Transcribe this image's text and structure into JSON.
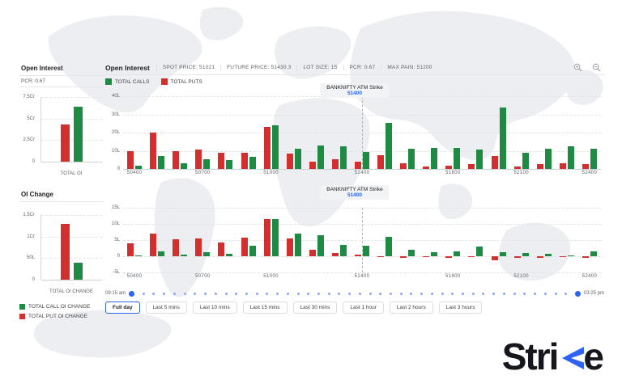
{
  "colors": {
    "call_green": "#1e8a44",
    "put_red": "#d22f2f",
    "accent_blue": "#2e62f1",
    "dot_blue": "#8aa4f8",
    "atm_box_bg": "#f1f3f4"
  },
  "sidebar": {
    "oi_panel": {
      "title": "Open Interest",
      "pcr_label": "PCR: 0.67",
      "xlabel": "TOTAL OI"
    },
    "oi_change_panel": {
      "title": "OI Change",
      "xlabel": "TOTAL OI CHANGE"
    },
    "legend": [
      {
        "label": "TOTAL CALL OI CHANGE",
        "color": "#1e8a44"
      },
      {
        "label": "TOTAL PUT OI CHANGE",
        "color": "#d22f2f"
      }
    ]
  },
  "main": {
    "title": "Open Interest",
    "stats": [
      {
        "label": "SPOT PRICE",
        "value": "51021"
      },
      {
        "label": "FUTURE PRICE",
        "value": "51430.3"
      },
      {
        "label": "LOT SIZE",
        "value": "15"
      },
      {
        "label": "PCR",
        "value": "0.67"
      },
      {
        "label": "MAX PAIN",
        "value": "51200"
      }
    ],
    "legend": [
      {
        "label": "TOTAL CALLS",
        "color": "#1e8a44"
      },
      {
        "label": "TOTAL PUTS",
        "color": "#d22f2f"
      }
    ],
    "atm": {
      "label": "BANKNIFTY ATM Strike",
      "value": "51400"
    },
    "slider": {
      "start_label": "09:15 am",
      "end_label": "03:25 pm",
      "dot_count": 42
    },
    "range_buttons": [
      {
        "label": "Full day",
        "active": true
      },
      {
        "label": "Last 5 mins",
        "active": false
      },
      {
        "label": "Last 10 mins",
        "active": false
      },
      {
        "label": "Last 15 mins",
        "active": false
      },
      {
        "label": "Last 30 mins",
        "active": false
      },
      {
        "label": "Last 1 hour",
        "active": false
      },
      {
        "label": "Last 2 hours",
        "active": false
      },
      {
        "label": "Last 3 hours",
        "active": false
      }
    ]
  },
  "logo": {
    "name": "Strike",
    "prefix": "Stri",
    "suffix": "e"
  },
  "chart_data": [
    {
      "id": "main_total_oi",
      "type": "bar",
      "title": "Open Interest by strike",
      "unit": "lakh",
      "categories": [
        "50400",
        "50500",
        "50600",
        "50700",
        "50800",
        "50900",
        "51000",
        "51100",
        "51200",
        "51300",
        "51400",
        "51500",
        "51600",
        "51700",
        "51800",
        "51900",
        "52000",
        "52100",
        "52200",
        "52300",
        "52400"
      ],
      "series": [
        {
          "name": "TOTAL PUTS",
          "color": "#d22f2f",
          "values": [
            10,
            20,
            10,
            10.5,
            9,
            9,
            23,
            8.5,
            4,
            5.5,
            4,
            7.5,
            3,
            1.5,
            2,
            2.5,
            7,
            1.5,
            2.5,
            3,
            2.5
          ]
        },
        {
          "name": "TOTAL CALLS",
          "color": "#1e8a44",
          "values": [
            2,
            7,
            3,
            5.5,
            5,
            6.5,
            24,
            11,
            13,
            12.5,
            9.5,
            25.5,
            11,
            11.5,
            11.5,
            10.5,
            34,
            9,
            11,
            12.5,
            11
          ]
        }
      ],
      "ylim": [
        0,
        40
      ],
      "yticks": [
        "40L",
        "30L",
        "20L",
        "10L",
        "0"
      ],
      "xtick_indices": [
        0,
        3,
        6,
        10,
        14,
        17,
        20
      ],
      "atm_index": 10,
      "atm_strike": "51400",
      "grid": "dashed-horizontal",
      "legend_position": "top-left"
    },
    {
      "id": "main_oi_change",
      "type": "bar",
      "title": "OI Change by strike",
      "unit": "lakh",
      "categories": [
        "50400",
        "50500",
        "50600",
        "50700",
        "50800",
        "50900",
        "51000",
        "51100",
        "51200",
        "51300",
        "51400",
        "51500",
        "51600",
        "51700",
        "51800",
        "51900",
        "52000",
        "52100",
        "52200",
        "52300",
        "52400"
      ],
      "series": [
        {
          "name": "TOTAL PUT OI CHANGE",
          "color": "#d22f2f",
          "values": [
            4,
            7,
            5.2,
            5.5,
            4.2,
            5.7,
            11.5,
            5.5,
            2,
            1,
            0.4,
            -0.2,
            -0.4,
            -0.3,
            -0.4,
            -0.3,
            -1.2,
            -0.4,
            -0.4,
            -0.3,
            -0.6
          ]
        },
        {
          "name": "TOTAL CALL OI CHANGE",
          "color": "#1e8a44",
          "values": [
            0.3,
            1.5,
            0.4,
            1.2,
            0.8,
            3.2,
            11.6,
            7,
            6.5,
            3.5,
            3.3,
            6,
            2,
            1.2,
            1.5,
            3,
            1.3,
            0.9,
            0.8,
            0.3,
            1.6
          ]
        }
      ],
      "ylim": [
        -5,
        15
      ],
      "yticks": [
        "15L",
        "10L",
        "5L",
        "0",
        "-5L"
      ],
      "xtick_indices": [
        0,
        3,
        6,
        10,
        14,
        17,
        20
      ],
      "atm_index": 10,
      "atm_strike": "51400",
      "grid": "dashed-horizontal",
      "legend_position": "none"
    },
    {
      "id": "sidebar_total_oi",
      "type": "bar",
      "title": "Open Interest total",
      "unit": "crore",
      "categories": [
        "TOTAL OI"
      ],
      "series": [
        {
          "name": "TOTAL PUTS",
          "color": "#d22f2f",
          "values": [
            4.3
          ]
        },
        {
          "name": "TOTAL CALLS",
          "color": "#1e8a44",
          "values": [
            6.4
          ]
        }
      ],
      "ylim": [
        0,
        7.5
      ],
      "yticks": [
        "7.5Cr",
        "5Cr",
        "2.5Cr",
        "0"
      ],
      "grid": "dashed-horizontal",
      "legend_position": "none"
    },
    {
      "id": "sidebar_oi_change",
      "type": "bar",
      "title": "OI Change total",
      "unit": "crore",
      "categories": [
        "TOTAL OI CHANGE"
      ],
      "series": [
        {
          "name": "TOTAL PUT OI CHANGE",
          "color": "#d22f2f",
          "values": [
            1.3
          ]
        },
        {
          "name": "TOTAL CALL OI CHANGE",
          "color": "#1e8a44",
          "values": [
            0.4
          ]
        }
      ],
      "ylim": [
        0,
        1.5
      ],
      "yticks": [
        "1.5Cr",
        "1Cr",
        "50L",
        "0"
      ],
      "grid": "dashed-horizontal",
      "legend_position": "none"
    }
  ]
}
